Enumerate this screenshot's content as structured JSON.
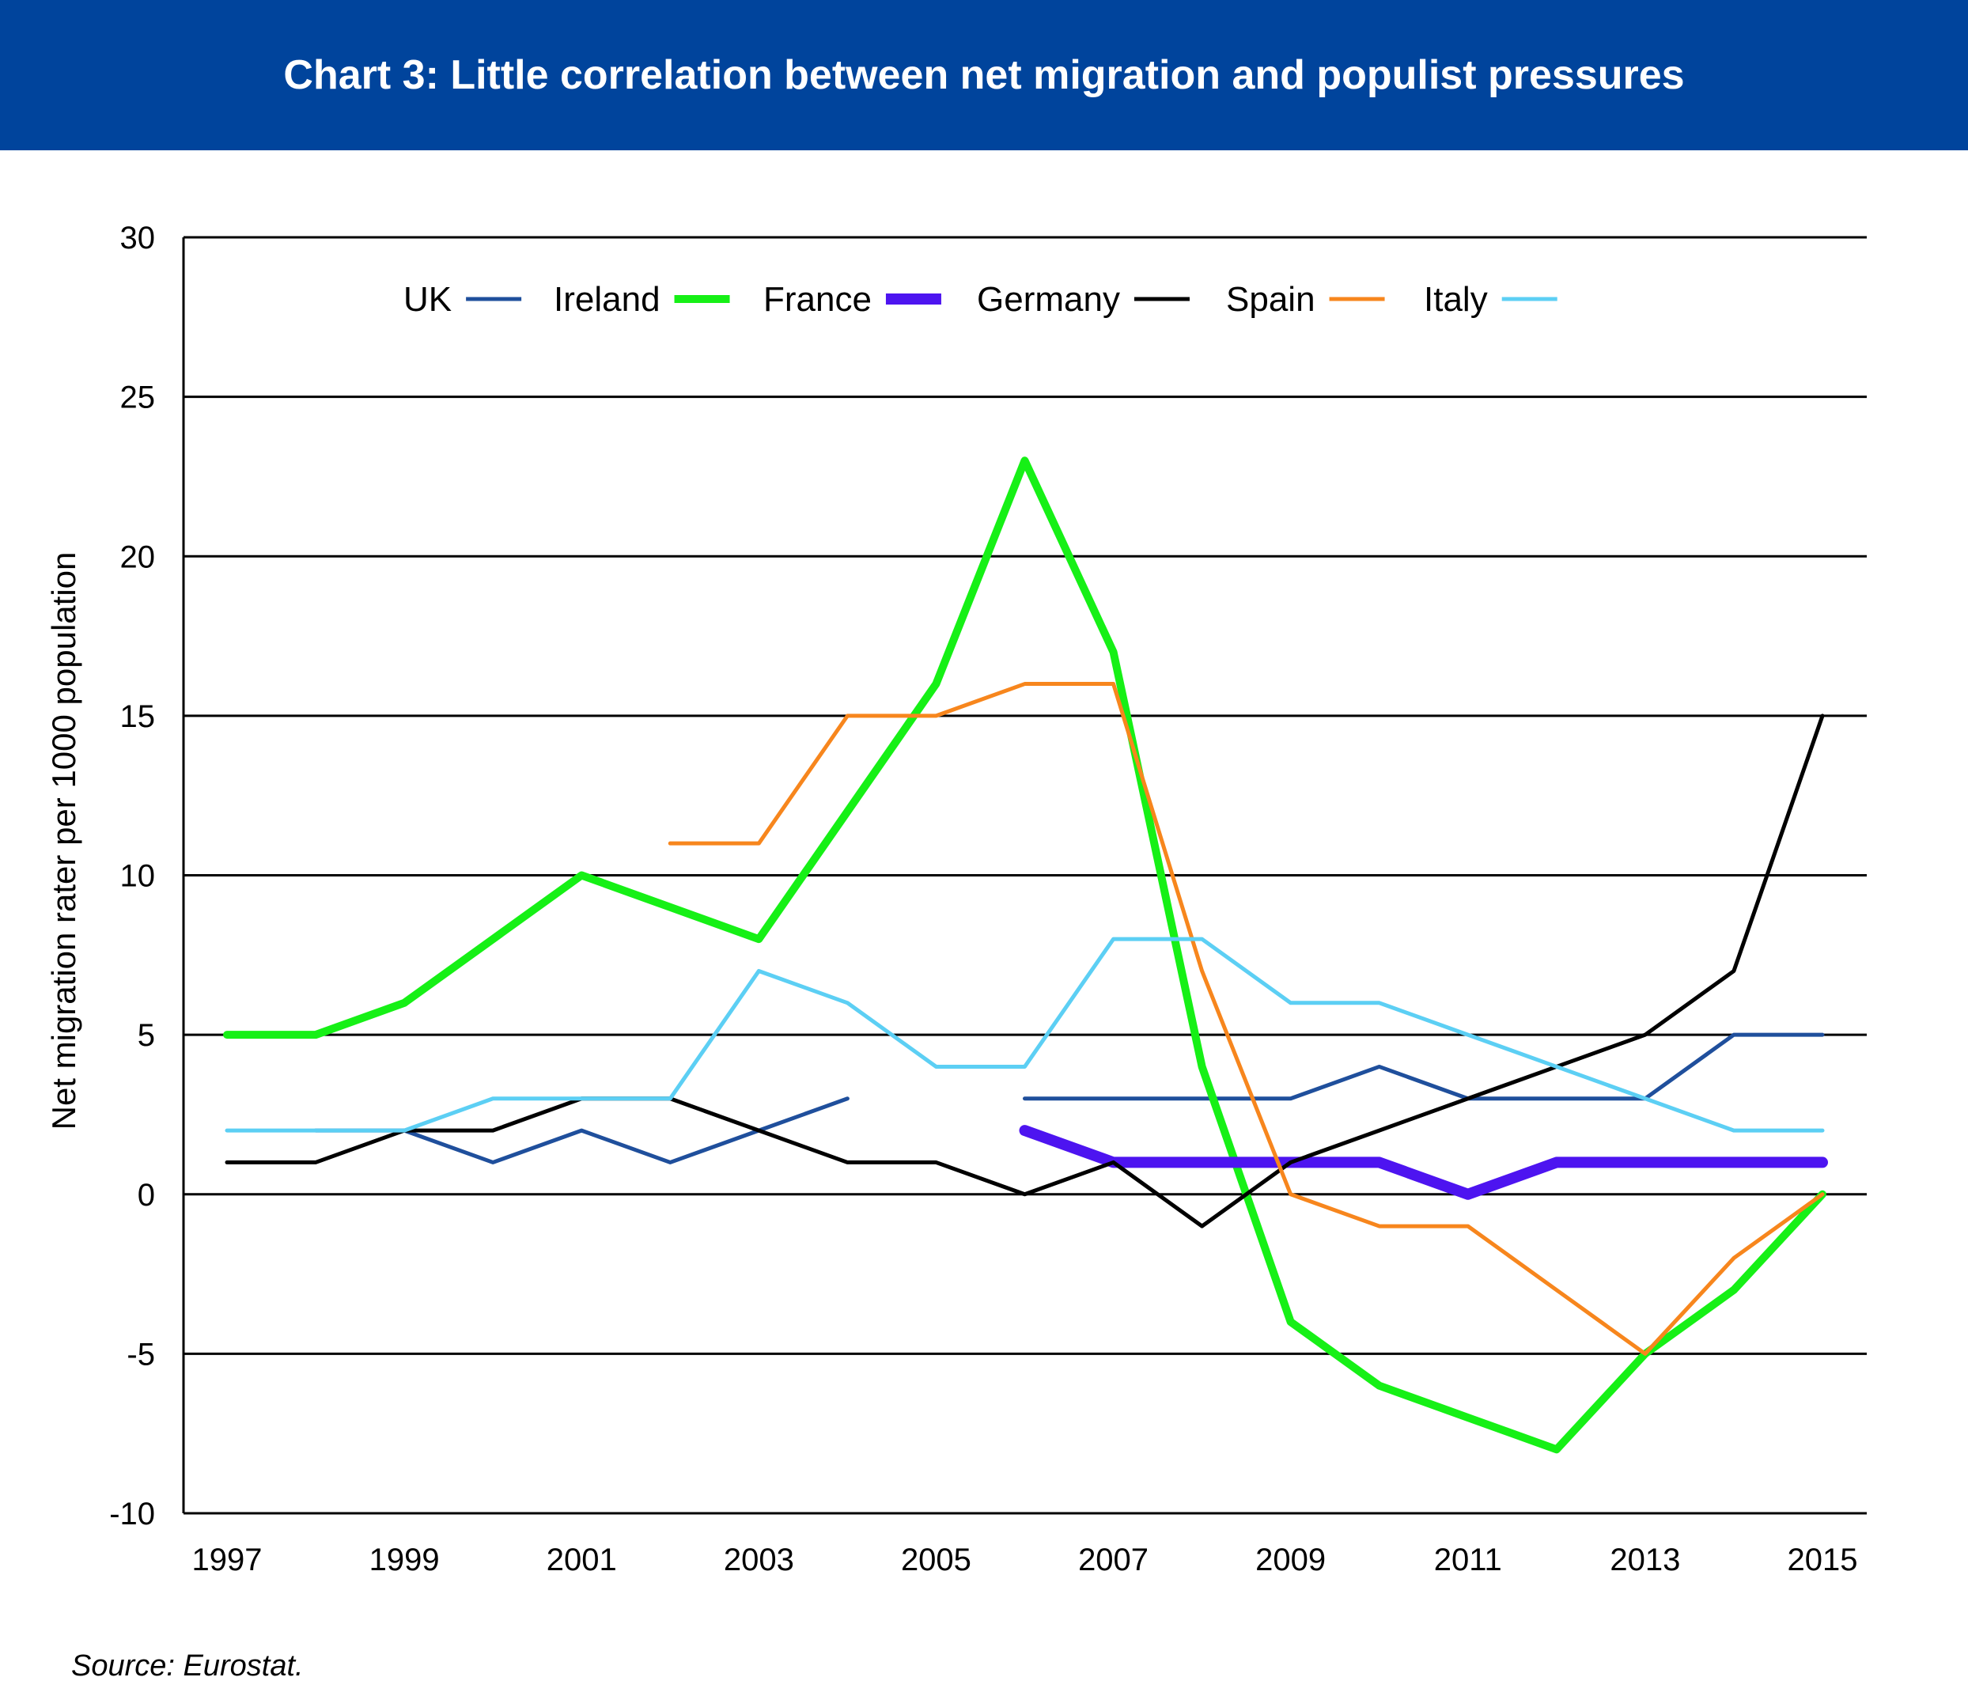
{
  "header": {
    "title": "Chart 3: Little correlation between net migration and populist pressures"
  },
  "footer": {
    "source": "Source: Eurostat."
  },
  "colors": {
    "header_bg": "#00449c",
    "UK": "#1f4f9c",
    "Ireland": "#16f016",
    "France": "#4d14f0",
    "Germany": "#000000",
    "Spain": "#f7861d",
    "Italy": "#5ccff4"
  },
  "chart_data": {
    "type": "line",
    "title": "Chart 3: Little correlation between net migration and populist pressures",
    "xlabel": "",
    "ylabel": "Net migration rater per 1000 population",
    "xlim": [
      1997,
      2015
    ],
    "ylim": [
      -10,
      30
    ],
    "x_ticks": [
      "1997",
      "1999",
      "2001",
      "2003",
      "2005",
      "2007",
      "2009",
      "2011",
      "2013",
      "2015"
    ],
    "y_ticks": [
      "30",
      "25",
      "20",
      "15",
      "10",
      "5",
      "0",
      "-5",
      "-10"
    ],
    "grid": "horizontal",
    "legend_position": "top",
    "x": [
      1997,
      1998,
      1999,
      2000,
      2001,
      2002,
      2003,
      2004,
      2005,
      2006,
      2007,
      2008,
      2009,
      2010,
      2011,
      2012,
      2013,
      2014,
      2015
    ],
    "series": [
      {
        "name": "UK",
        "color": "#1f4f9c",
        "width": 5,
        "values": [
          null,
          2,
          2,
          1,
          2,
          1,
          2,
          3,
          null,
          3,
          3,
          3,
          3,
          4,
          3,
          3,
          3,
          5,
          5
        ]
      },
      {
        "name": "Ireland",
        "color": "#16f016",
        "width": 10,
        "values": [
          5,
          5,
          6,
          8,
          10,
          9,
          8,
          12,
          16,
          23,
          17,
          4,
          -4,
          -6,
          -7,
          -8,
          -5,
          -3,
          0
        ]
      },
      {
        "name": "France",
        "color": "#4d14f0",
        "width": 14,
        "values": [
          null,
          null,
          null,
          null,
          null,
          null,
          null,
          null,
          null,
          2,
          1,
          1,
          1,
          1,
          0,
          1,
          1,
          1,
          1
        ]
      },
      {
        "name": "Germany",
        "color": "#000000",
        "width": 5,
        "values": [
          1,
          1,
          2,
          2,
          3,
          3,
          2,
          1,
          1,
          0,
          1,
          -1,
          1,
          2,
          3,
          4,
          5,
          7,
          15
        ]
      },
      {
        "name": "Spain",
        "color": "#f7861d",
        "width": 5,
        "values": [
          null,
          null,
          null,
          null,
          null,
          11,
          11,
          15,
          15,
          16,
          16,
          7,
          0,
          -1,
          -1,
          -3,
          -5,
          -2,
          0
        ]
      },
      {
        "name": "Italy",
        "color": "#5ccff4",
        "width": 5,
        "values": [
          2,
          2,
          2,
          3,
          3,
          3,
          7,
          6,
          4,
          4,
          8,
          8,
          6,
          6,
          5,
          4,
          3,
          2,
          2
        ]
      }
    ]
  }
}
